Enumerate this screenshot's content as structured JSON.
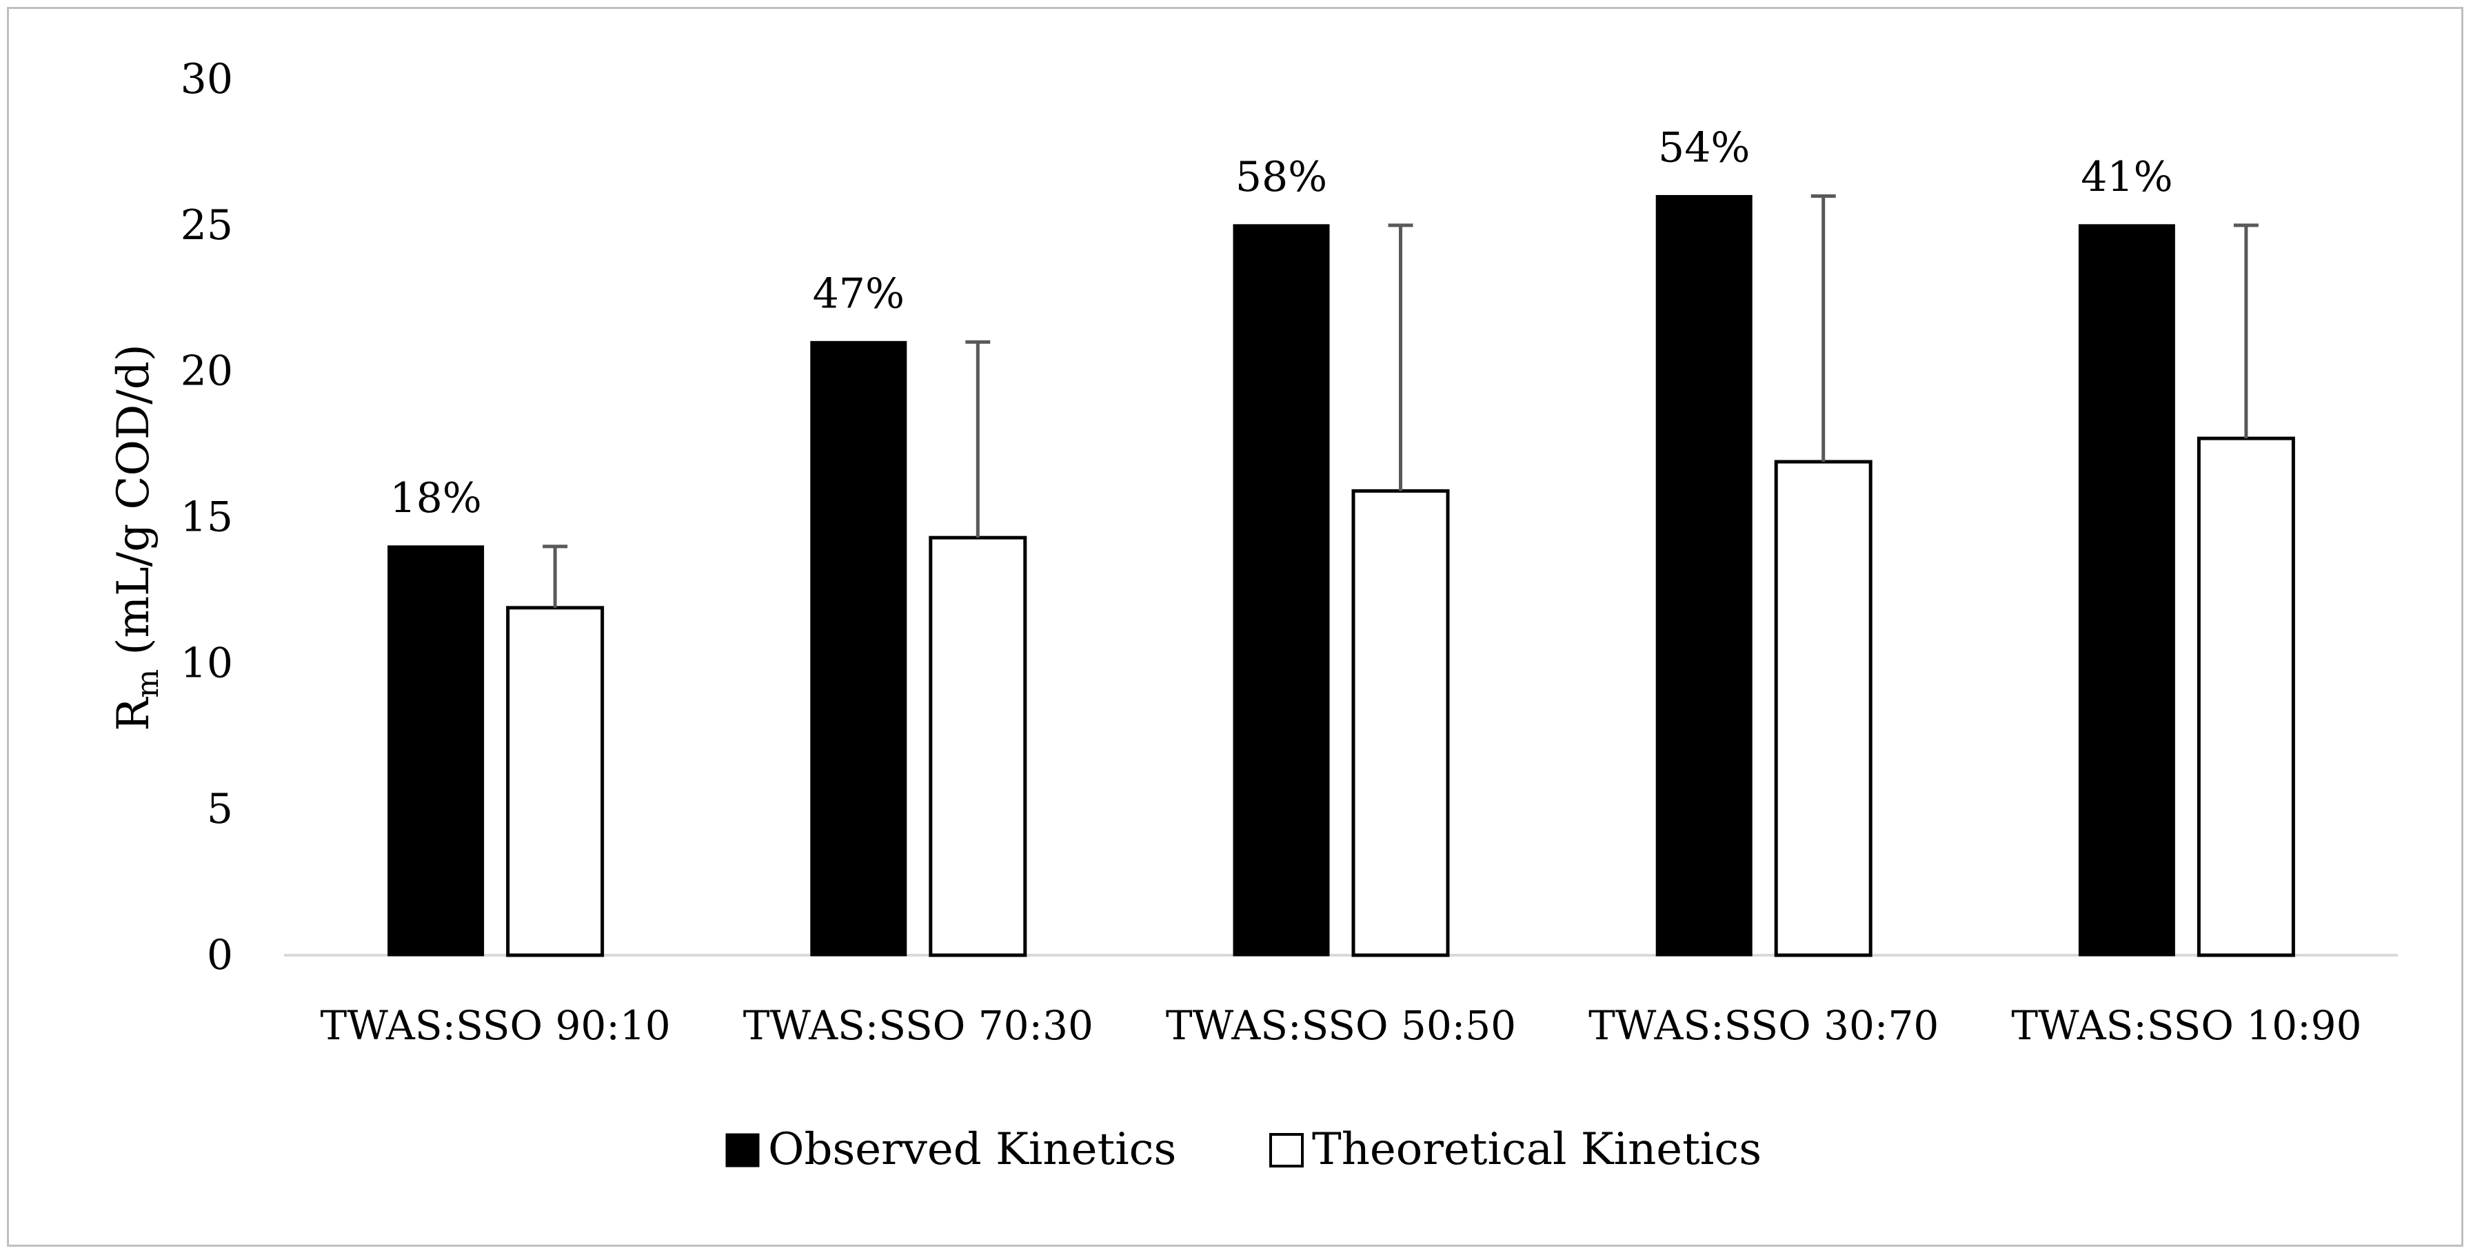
{
  "chart_data": {
    "type": "bar",
    "title": "",
    "xlabel": "",
    "ylabel": {
      "main": "R",
      "subscript": "m",
      "rest": " (mL/g COD/d)"
    },
    "ylim": [
      0,
      30
    ],
    "y_ticks": [
      0,
      5,
      10,
      15,
      20,
      25,
      30
    ],
    "grid": false,
    "legend_position": "bottom",
    "categories": [
      "TWAS:SSO 90:10",
      "TWAS:SSO 70:30",
      "TWAS:SSO 50:50",
      "TWAS:SSO 30:70",
      "TWAS:SSO 10:90"
    ],
    "series": [
      {
        "name": "Observed Kinetics",
        "color": "#000000",
        "values": [
          14,
          21,
          25,
          26,
          25
        ]
      },
      {
        "name": "Theoretical Kinetics",
        "color": "#ffffff",
        "values": [
          11.9,
          14.3,
          15.9,
          16.9,
          17.7
        ],
        "error_upper": [
          14,
          21,
          25,
          26,
          25
        ]
      }
    ],
    "annotations": [
      "18%",
      "47%",
      "58%",
      "54%",
      "41%"
    ]
  }
}
